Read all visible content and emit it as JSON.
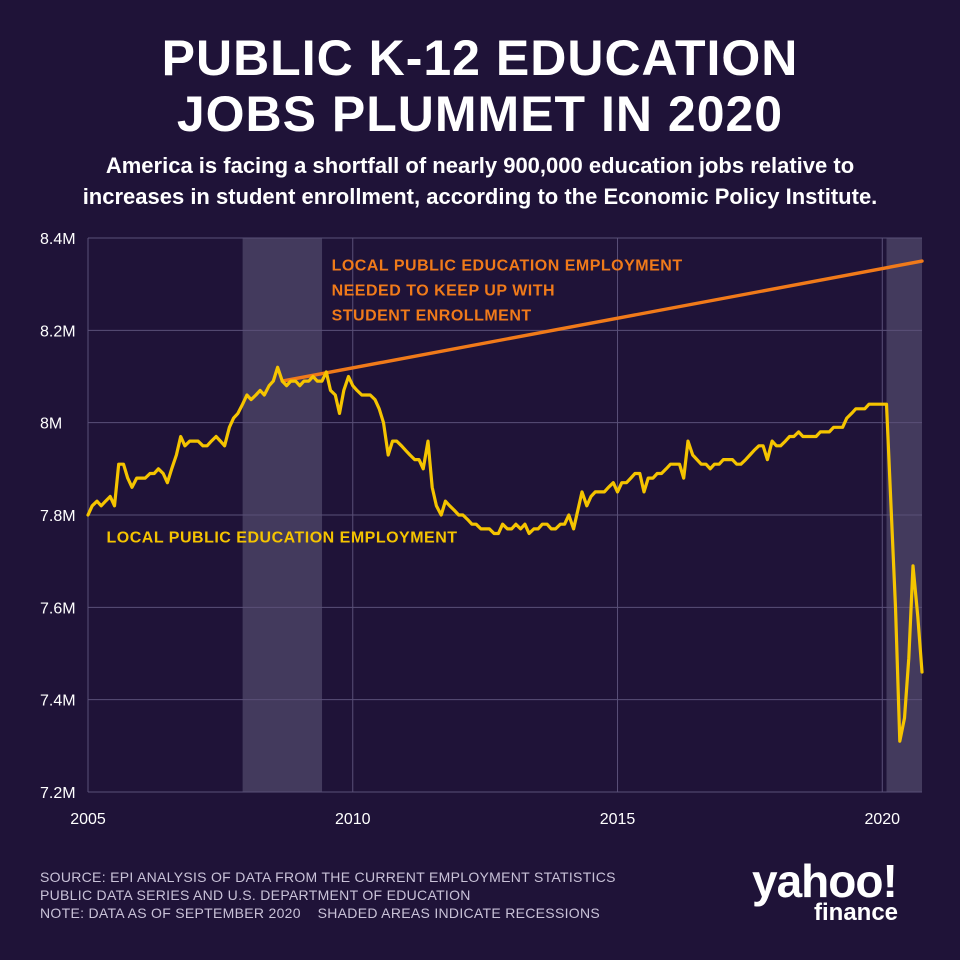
{
  "title": [
    "PUBLIC K-12 EDUCATION",
    "JOBS PLUMMET IN 2020"
  ],
  "subtitle": [
    "America is facing a shortfall of nearly 900,000 education jobs relative to",
    "increases in student enrollment, according to the Economic Policy Institute."
  ],
  "source_lines": [
    "SOURCE: EPI ANALYSIS OF DATA FROM THE CURRENT EMPLOYMENT STATISTICS",
    "PUBLIC DATA SERIES AND U.S. DEPARTMENT OF EDUCATION",
    "NOTE: DATA AS OF SEPTEMBER 2020    SHADED AREAS INDICATE RECESSIONS"
  ],
  "logo": {
    "main": "yahoo!",
    "sub": "finance"
  },
  "colors": {
    "background": "#1f1338",
    "employment_line": "#f5c400",
    "needed_line": "#f07a1a",
    "recession_band": "#4a4264",
    "grid": "#5a5078",
    "text": "#ffffff"
  },
  "chart_data": {
    "type": "line",
    "x_unit": "year",
    "xlim": [
      2005.0,
      2020.75
    ],
    "ylim": [
      7.2,
      8.4
    ],
    "y_ticks": [
      7.2,
      7.4,
      7.6,
      7.8,
      8.0,
      8.2,
      8.4
    ],
    "y_tick_labels": [
      "7.2M",
      "7.4M",
      "7.6M",
      "7.8M",
      "8M",
      "8.2M",
      "8.4M"
    ],
    "x_ticks": [
      2005,
      2010,
      2015,
      2020
    ],
    "x_tick_labels": [
      "2005",
      "2010",
      "2015",
      "2020"
    ],
    "grid": true,
    "recessions": [
      [
        2007.92,
        2009.42
      ],
      [
        2020.08,
        2020.75
      ]
    ],
    "series": [
      {
        "name": "LOCAL PUBLIC EDUCATION EMPLOYMENT",
        "color": "#f5c400",
        "points": [
          [
            2005.0,
            7.8
          ],
          [
            2005.08,
            7.82
          ],
          [
            2005.17,
            7.83
          ],
          [
            2005.25,
            7.82
          ],
          [
            2005.33,
            7.83
          ],
          [
            2005.42,
            7.84
          ],
          [
            2005.5,
            7.82
          ],
          [
            2005.58,
            7.91
          ],
          [
            2005.67,
            7.91
          ],
          [
            2005.75,
            7.88
          ],
          [
            2005.83,
            7.86
          ],
          [
            2005.92,
            7.88
          ],
          [
            2006.0,
            7.88
          ],
          [
            2006.08,
            7.88
          ],
          [
            2006.17,
            7.89
          ],
          [
            2006.25,
            7.89
          ],
          [
            2006.33,
            7.9
          ],
          [
            2006.42,
            7.89
          ],
          [
            2006.5,
            7.87
          ],
          [
            2006.58,
            7.9
          ],
          [
            2006.67,
            7.93
          ],
          [
            2006.75,
            7.97
          ],
          [
            2006.83,
            7.95
          ],
          [
            2006.92,
            7.96
          ],
          [
            2007.0,
            7.96
          ],
          [
            2007.08,
            7.96
          ],
          [
            2007.17,
            7.95
          ],
          [
            2007.25,
            7.95
          ],
          [
            2007.33,
            7.96
          ],
          [
            2007.42,
            7.97
          ],
          [
            2007.5,
            7.96
          ],
          [
            2007.58,
            7.95
          ],
          [
            2007.67,
            7.99
          ],
          [
            2007.75,
            8.01
          ],
          [
            2007.83,
            8.02
          ],
          [
            2007.92,
            8.04
          ],
          [
            2008.0,
            8.06
          ],
          [
            2008.08,
            8.05
          ],
          [
            2008.17,
            8.06
          ],
          [
            2008.25,
            8.07
          ],
          [
            2008.33,
            8.06
          ],
          [
            2008.42,
            8.08
          ],
          [
            2008.5,
            8.09
          ],
          [
            2008.58,
            8.12
          ],
          [
            2008.67,
            8.09
          ],
          [
            2008.75,
            8.08
          ],
          [
            2008.83,
            8.09
          ],
          [
            2008.92,
            8.09
          ],
          [
            2009.0,
            8.08
          ],
          [
            2009.08,
            8.09
          ],
          [
            2009.17,
            8.09
          ],
          [
            2009.25,
            8.1
          ],
          [
            2009.33,
            8.09
          ],
          [
            2009.42,
            8.09
          ],
          [
            2009.5,
            8.11
          ],
          [
            2009.58,
            8.07
          ],
          [
            2009.67,
            8.06
          ],
          [
            2009.75,
            8.02
          ],
          [
            2009.83,
            8.07
          ],
          [
            2009.92,
            8.1
          ],
          [
            2010.0,
            8.08
          ],
          [
            2010.08,
            8.07
          ],
          [
            2010.17,
            8.06
          ],
          [
            2010.25,
            8.06
          ],
          [
            2010.33,
            8.06
          ],
          [
            2010.42,
            8.05
          ],
          [
            2010.5,
            8.03
          ],
          [
            2010.58,
            8.0
          ],
          [
            2010.67,
            7.93
          ],
          [
            2010.75,
            7.96
          ],
          [
            2010.83,
            7.96
          ],
          [
            2010.92,
            7.95
          ],
          [
            2011.0,
            7.94
          ],
          [
            2011.08,
            7.93
          ],
          [
            2011.17,
            7.92
          ],
          [
            2011.25,
            7.92
          ],
          [
            2011.33,
            7.9
          ],
          [
            2011.42,
            7.96
          ],
          [
            2011.5,
            7.86
          ],
          [
            2011.58,
            7.82
          ],
          [
            2011.67,
            7.8
          ],
          [
            2011.75,
            7.83
          ],
          [
            2011.83,
            7.82
          ],
          [
            2011.92,
            7.81
          ],
          [
            2012.0,
            7.8
          ],
          [
            2012.08,
            7.8
          ],
          [
            2012.17,
            7.79
          ],
          [
            2012.25,
            7.78
          ],
          [
            2012.33,
            7.78
          ],
          [
            2012.42,
            7.77
          ],
          [
            2012.5,
            7.77
          ],
          [
            2012.58,
            7.77
          ],
          [
            2012.67,
            7.76
          ],
          [
            2012.75,
            7.76
          ],
          [
            2012.83,
            7.78
          ],
          [
            2012.92,
            7.77
          ],
          [
            2013.0,
            7.77
          ],
          [
            2013.08,
            7.78
          ],
          [
            2013.17,
            7.77
          ],
          [
            2013.25,
            7.78
          ],
          [
            2013.33,
            7.76
          ],
          [
            2013.42,
            7.77
          ],
          [
            2013.5,
            7.77
          ],
          [
            2013.58,
            7.78
          ],
          [
            2013.67,
            7.78
          ],
          [
            2013.75,
            7.77
          ],
          [
            2013.83,
            7.77
          ],
          [
            2013.92,
            7.78
          ],
          [
            2014.0,
            7.78
          ],
          [
            2014.08,
            7.8
          ],
          [
            2014.17,
            7.77
          ],
          [
            2014.25,
            7.81
          ],
          [
            2014.33,
            7.85
          ],
          [
            2014.42,
            7.82
          ],
          [
            2014.5,
            7.84
          ],
          [
            2014.58,
            7.85
          ],
          [
            2014.67,
            7.85
          ],
          [
            2014.75,
            7.85
          ],
          [
            2014.83,
            7.86
          ],
          [
            2014.92,
            7.87
          ],
          [
            2015.0,
            7.85
          ],
          [
            2015.08,
            7.87
          ],
          [
            2015.17,
            7.87
          ],
          [
            2015.25,
            7.88
          ],
          [
            2015.33,
            7.89
          ],
          [
            2015.42,
            7.89
          ],
          [
            2015.5,
            7.85
          ],
          [
            2015.58,
            7.88
          ],
          [
            2015.67,
            7.88
          ],
          [
            2015.75,
            7.89
          ],
          [
            2015.83,
            7.89
          ],
          [
            2015.92,
            7.9
          ],
          [
            2016.0,
            7.91
          ],
          [
            2016.08,
            7.91
          ],
          [
            2016.17,
            7.91
          ],
          [
            2016.25,
            7.88
          ],
          [
            2016.33,
            7.96
          ],
          [
            2016.42,
            7.93
          ],
          [
            2016.5,
            7.92
          ],
          [
            2016.58,
            7.91
          ],
          [
            2016.67,
            7.91
          ],
          [
            2016.75,
            7.9
          ],
          [
            2016.83,
            7.91
          ],
          [
            2016.92,
            7.91
          ],
          [
            2017.0,
            7.92
          ],
          [
            2017.08,
            7.92
          ],
          [
            2017.17,
            7.92
          ],
          [
            2017.25,
            7.91
          ],
          [
            2017.33,
            7.91
          ],
          [
            2017.42,
            7.92
          ],
          [
            2017.5,
            7.93
          ],
          [
            2017.58,
            7.94
          ],
          [
            2017.67,
            7.95
          ],
          [
            2017.75,
            7.95
          ],
          [
            2017.83,
            7.92
          ],
          [
            2017.92,
            7.96
          ],
          [
            2018.0,
            7.95
          ],
          [
            2018.08,
            7.95
          ],
          [
            2018.17,
            7.96
          ],
          [
            2018.25,
            7.97
          ],
          [
            2018.33,
            7.97
          ],
          [
            2018.42,
            7.98
          ],
          [
            2018.5,
            7.97
          ],
          [
            2018.58,
            7.97
          ],
          [
            2018.67,
            7.97
          ],
          [
            2018.75,
            7.97
          ],
          [
            2018.83,
            7.98
          ],
          [
            2018.92,
            7.98
          ],
          [
            2019.0,
            7.98
          ],
          [
            2019.08,
            7.99
          ],
          [
            2019.17,
            7.99
          ],
          [
            2019.25,
            7.99
          ],
          [
            2019.33,
            8.01
          ],
          [
            2019.42,
            8.02
          ],
          [
            2019.5,
            8.03
          ],
          [
            2019.58,
            8.03
          ],
          [
            2019.67,
            8.03
          ],
          [
            2019.75,
            8.04
          ],
          [
            2019.83,
            8.04
          ],
          [
            2019.92,
            8.04
          ],
          [
            2020.0,
            8.04
          ],
          [
            2020.08,
            8.04
          ],
          [
            2020.25,
            7.6
          ],
          [
            2020.33,
            7.31
          ],
          [
            2020.42,
            7.36
          ],
          [
            2020.5,
            7.49
          ],
          [
            2020.58,
            7.69
          ],
          [
            2020.67,
            7.58
          ],
          [
            2020.75,
            7.46
          ]
        ]
      },
      {
        "name": "LOCAL PUBLIC EDUCATION EMPLOYMENT NEEDED TO KEEP UP WITH STUDENT ENROLLMENT",
        "color": "#f07a1a",
        "points": [
          [
            2008.67,
            8.09
          ],
          [
            2020.75,
            8.35
          ]
        ]
      }
    ],
    "annotations": [
      {
        "series": 1,
        "lines": [
          "LOCAL PUBLIC EDUCATION EMPLOYMENT",
          "NEEDED TO KEEP UP WITH",
          "STUDENT ENROLLMENT"
        ],
        "x": 2009.6,
        "y": 8.33
      },
      {
        "series": 0,
        "lines": [
          "LOCAL PUBLIC EDUCATION EMPLOYMENT"
        ],
        "x": 2005.35,
        "y": 7.74
      }
    ]
  }
}
